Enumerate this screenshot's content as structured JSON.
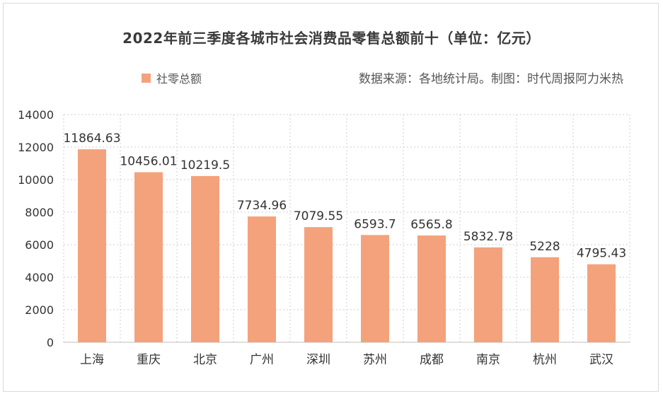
{
  "chart_data": {
    "type": "bar",
    "title": "2022年前三季度各城市社会消费品零售总额前十（单位：亿元）",
    "source_note": "数据来源：各地统计局。制图：时代周报阿力米热",
    "legend_position": "top-left",
    "grid": true,
    "ylim": [
      0,
      14000
    ],
    "yticks": [
      0,
      2000,
      4000,
      6000,
      8000,
      10000,
      12000,
      14000
    ],
    "categories": [
      "上海",
      "重庆",
      "北京",
      "广州",
      "深圳",
      "苏州",
      "成都",
      "南京",
      "杭州",
      "武汉"
    ],
    "series": [
      {
        "name": "社零总额",
        "color": "#f4a27c",
        "values": [
          11864.63,
          10456.01,
          10219.5,
          7734.96,
          7079.55,
          6593.7,
          6565.8,
          5832.78,
          5228,
          4795.43
        ]
      }
    ]
  }
}
